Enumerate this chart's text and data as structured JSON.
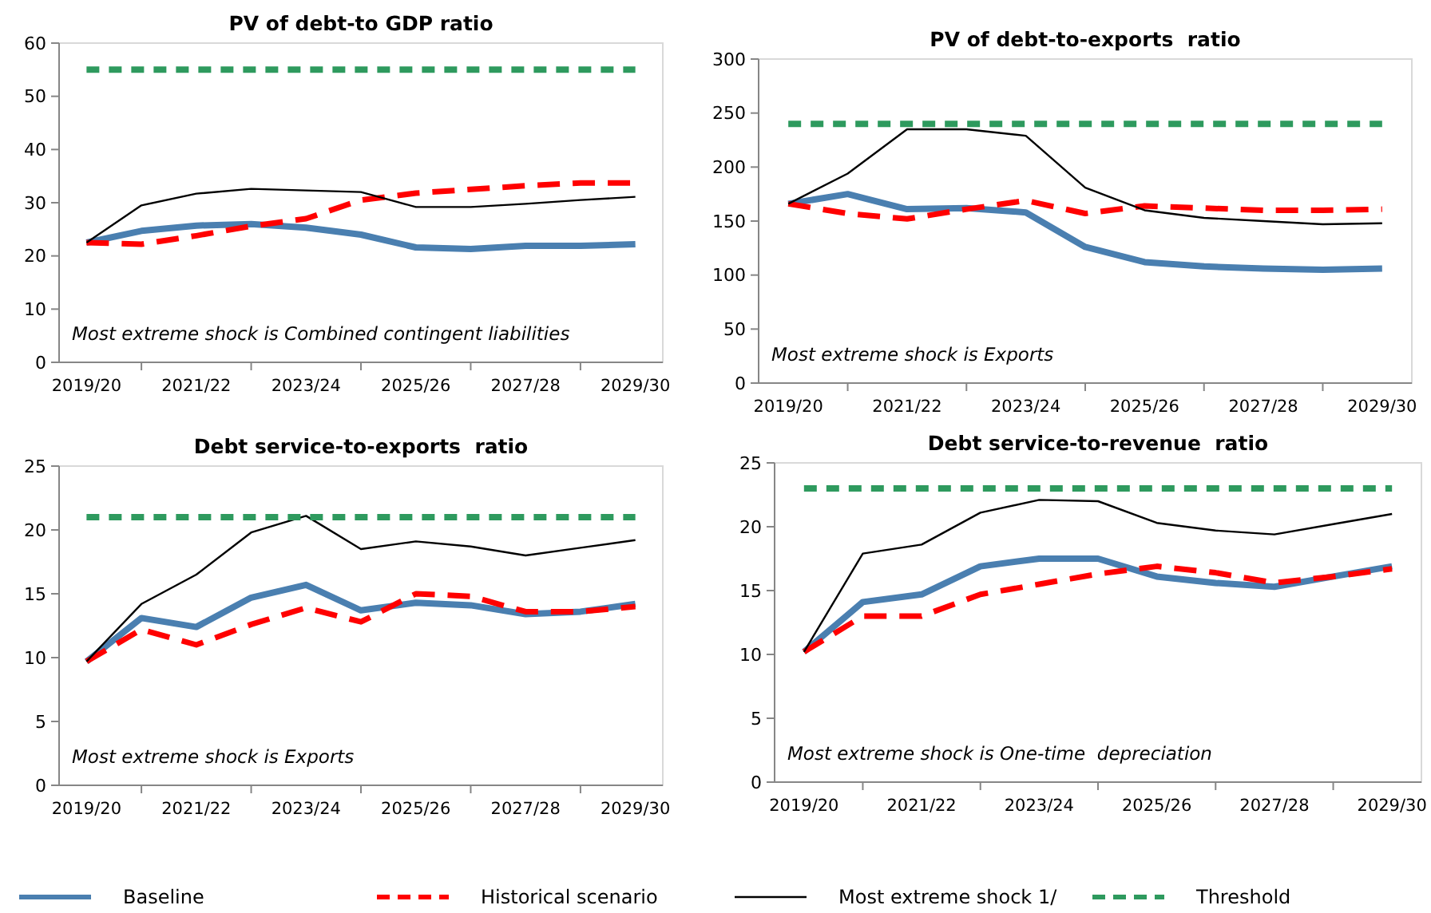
{
  "chart_data": [
    {
      "type": "line",
      "title": "PV of debt-to GDP ratio",
      "categories": [
        "2019/20",
        null,
        "2021/22",
        null,
        "2023/24",
        null,
        "2025/26",
        null,
        "2027/28",
        null,
        "2029/30"
      ],
      "ylim": [
        0,
        60
      ],
      "yticks": [
        0,
        10,
        20,
        30,
        40,
        50,
        60
      ],
      "grid": false,
      "legend": "bottom",
      "annotations": [
        "Most extreme shock is Combined contingent liabilities"
      ],
      "series": [
        {
          "name": "Baseline",
          "color": "#4a7fb0",
          "line_style": "solid",
          "values": [
            22.5,
            24.7,
            25.7,
            26,
            25.3,
            24,
            21.6,
            21.3,
            21.9,
            21.9,
            22.2
          ]
        },
        {
          "name": "Historical scenario",
          "color": "#ff0000",
          "line_style": "dashed",
          "values": [
            22.5,
            22.2,
            23.8,
            25.6,
            27,
            30.5,
            31.8,
            32.5,
            33.2,
            33.7,
            33.7
          ]
        },
        {
          "name": "Most extreme shock 1/",
          "color": "#000000",
          "line_style": "solid",
          "values": [
            22.5,
            29.5,
            31.7,
            32.6,
            32.3,
            32,
            29.2,
            29.2,
            29.8,
            30.5,
            31.1
          ]
        },
        {
          "name": "Threshold",
          "color": "#2e9a5e",
          "line_style": "dotted",
          "values": [
            55,
            55,
            55,
            55,
            55,
            55,
            55,
            55,
            55,
            55,
            55
          ]
        }
      ]
    },
    {
      "type": "line",
      "title": "PV of debt-to-exports  ratio",
      "categories": [
        "2019/20",
        null,
        "2021/22",
        null,
        "2023/24",
        null,
        "2025/26",
        null,
        "2027/28",
        null,
        "2029/30"
      ],
      "ylim": [
        0,
        300
      ],
      "yticks": [
        0,
        50,
        100,
        150,
        200,
        250,
        300
      ],
      "grid": false,
      "annotations": [
        "Most extreme shock is Exports"
      ],
      "series": [
        {
          "color": "#4a7fb0",
          "line_style": "solid",
          "values": [
            166,
            175,
            161,
            162,
            158,
            126,
            112,
            108,
            106,
            105,
            106
          ]
        },
        {
          "color": "#ff0000",
          "line_style": "dashed",
          "values": [
            166,
            157,
            152,
            161,
            169,
            157,
            164,
            162,
            160,
            160,
            161
          ]
        },
        {
          "color": "#000000",
          "line_style": "solid",
          "values": [
            166,
            194,
            235,
            235,
            229,
            181,
            160,
            153,
            150,
            147,
            148
          ]
        },
        {
          "color": "#2e9a5e",
          "line_style": "dotted",
          "values": [
            240,
            240,
            240,
            240,
            240,
            240,
            240,
            240,
            240,
            240,
            240
          ]
        }
      ]
    },
    {
      "type": "line",
      "title": "Debt service-to-exports  ratio",
      "categories": [
        "2019/20",
        null,
        "2021/22",
        null,
        "2023/24",
        null,
        "2025/26",
        null,
        "2027/28",
        null,
        "2029/30"
      ],
      "ylim": [
        0,
        25
      ],
      "yticks": [
        0,
        5,
        10,
        15,
        20,
        25
      ],
      "grid": false,
      "annotations": [
        "Most extreme shock is Exports"
      ],
      "series": [
        {
          "color": "#4a7fb0",
          "line_style": "solid",
          "values": [
            9.7,
            13.1,
            12.4,
            14.7,
            15.7,
            13.7,
            14.3,
            14.1,
            13.4,
            13.6,
            14.2
          ]
        },
        {
          "color": "#ff0000",
          "line_style": "dashed",
          "values": [
            9.7,
            12.2,
            11.0,
            12.6,
            13.9,
            12.8,
            15.0,
            14.8,
            13.6,
            13.6,
            14.0
          ]
        },
        {
          "color": "#000000",
          "line_style": "solid",
          "values": [
            9.7,
            14.2,
            16.5,
            19.8,
            21.1,
            18.5,
            19.1,
            18.7,
            18.0,
            18.6,
            19.2
          ]
        },
        {
          "color": "#2e9a5e",
          "line_style": "dotted",
          "values": [
            21,
            21,
            21,
            21,
            21,
            21,
            21,
            21,
            21,
            21,
            21
          ]
        }
      ]
    },
    {
      "type": "line",
      "title": "Debt service-to-revenue  ratio",
      "categories": [
        "2019/20",
        null,
        "2021/22",
        null,
        "2023/24",
        null,
        "2025/26",
        null,
        "2027/28",
        null,
        "2029/30"
      ],
      "ylim": [
        0,
        25
      ],
      "yticks": [
        0,
        5,
        10,
        15,
        20,
        25
      ],
      "grid": false,
      "annotations": [
        "Most extreme shock is One-time  depreciation"
      ],
      "series": [
        {
          "color": "#4a7fb0",
          "line_style": "solid",
          "values": [
            10.2,
            14.1,
            14.7,
            16.9,
            17.5,
            17.5,
            16.1,
            15.6,
            15.3,
            16.1,
            16.9
          ]
        },
        {
          "color": "#ff0000",
          "line_style": "dashed",
          "values": [
            10.2,
            13.0,
            13.0,
            14.7,
            15.5,
            16.3,
            16.9,
            16.4,
            15.6,
            16.1,
            16.7
          ]
        },
        {
          "color": "#000000",
          "line_style": "solid",
          "values": [
            10.2,
            17.9,
            18.6,
            21.1,
            22.1,
            22.0,
            20.3,
            19.7,
            19.4,
            20.2,
            21.0
          ]
        },
        {
          "color": "#2e9a5e",
          "line_style": "dotted",
          "values": [
            23,
            23,
            23,
            23,
            23,
            23,
            23,
            23,
            23,
            23,
            23
          ]
        }
      ]
    }
  ]
}
